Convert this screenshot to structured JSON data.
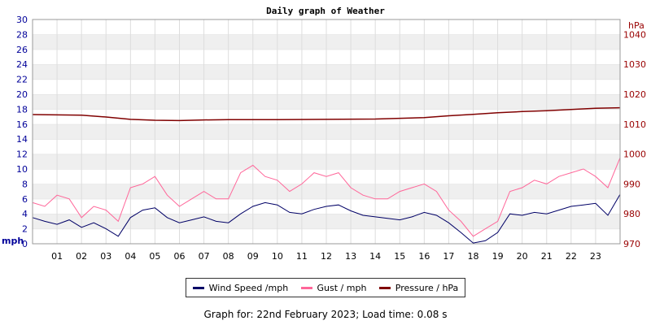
{
  "chart_data": {
    "type": "line",
    "title": "Daily graph of Weather",
    "left_axis": {
      "unit": "mph",
      "ylim": [
        0,
        30
      ],
      "ticks": [
        "0",
        "2",
        "4",
        "6",
        "8",
        "10",
        "12",
        "14",
        "16",
        "18",
        "20",
        "22",
        "24",
        "26",
        "28",
        "30"
      ],
      "color": "#000099"
    },
    "right_axis": {
      "unit": "hPa",
      "ylim": [
        970,
        1045
      ],
      "ticks": [
        "970",
        "980",
        "990",
        "1000",
        "1010",
        "1020",
        "1030",
        "1040"
      ],
      "color": "#990000"
    },
    "x_ticks": [
      "01",
      "02",
      "03",
      "04",
      "05",
      "06",
      "07",
      "08",
      "09",
      "10",
      "11",
      "12",
      "13",
      "14",
      "15",
      "16",
      "17",
      "18",
      "19",
      "20",
      "21",
      "22",
      "23"
    ],
    "x_range_hours": [
      0,
      24
    ],
    "grid": "horizontal bands",
    "series": [
      {
        "name": "Wind Speed /mph",
        "axis": "left",
        "color": "#000066",
        "x": [
          0,
          0.5,
          1,
          1.5,
          2,
          2.5,
          3,
          3.5,
          4,
          4.5,
          5,
          5.5,
          6,
          6.5,
          7,
          7.5,
          8,
          8.5,
          9,
          9.5,
          10,
          10.5,
          11,
          11.5,
          12,
          12.5,
          13,
          13.5,
          14,
          14.5,
          15,
          15.5,
          16,
          16.5,
          17,
          17.5,
          18,
          18.5,
          19,
          19.5,
          20,
          20.5,
          21,
          21.5,
          22,
          22.5,
          23,
          23.5,
          24
        ],
        "values": [
          3.5,
          3.0,
          2.6,
          3.2,
          2.2,
          2.8,
          2.0,
          1.0,
          3.5,
          4.5,
          4.8,
          3.5,
          2.8,
          3.2,
          3.6,
          3.0,
          2.8,
          4.0,
          5.0,
          5.5,
          5.2,
          4.2,
          4.0,
          4.6,
          5.0,
          5.2,
          4.4,
          3.8,
          3.6,
          3.4,
          3.2,
          3.6,
          4.2,
          3.8,
          2.8,
          1.5,
          0.1,
          0.4,
          1.5,
          4.0,
          3.8,
          4.2,
          4.0,
          4.5,
          5.0,
          5.2,
          5.4,
          3.8,
          6.6
        ]
      },
      {
        "name": "Gust / mph",
        "axis": "left",
        "color": "#ff6699",
        "x": [
          0,
          0.5,
          1,
          1.5,
          2,
          2.5,
          3,
          3.5,
          4,
          4.5,
          5,
          5.5,
          6,
          6.5,
          7,
          7.5,
          8,
          8.5,
          9,
          9.5,
          10,
          10.5,
          11,
          11.5,
          12,
          12.5,
          13,
          13.5,
          14,
          14.5,
          15,
          15.5,
          16,
          16.5,
          17,
          17.5,
          18,
          18.5,
          19,
          19.5,
          20,
          20.5,
          21,
          21.5,
          22,
          22.5,
          23,
          23.5,
          24
        ],
        "values": [
          5.5,
          5.0,
          6.5,
          6.0,
          3.5,
          5.0,
          4.5,
          3.0,
          7.5,
          8.0,
          9.0,
          6.5,
          5.0,
          6.0,
          7.0,
          6.0,
          6.0,
          9.5,
          10.5,
          9.0,
          8.5,
          7.0,
          8.0,
          9.5,
          9.0,
          9.5,
          7.5,
          6.5,
          6.0,
          6.0,
          7.0,
          7.5,
          8.0,
          7.0,
          4.5,
          3.0,
          1.0,
          2.0,
          3.0,
          7.0,
          7.5,
          8.5,
          8.0,
          9.0,
          9.5,
          10.0,
          9.0,
          7.5,
          11.5
        ]
      },
      {
        "name": "Pressure / hPa",
        "axis": "right",
        "color": "#800000",
        "x": [
          0,
          2,
          3,
          4,
          5,
          6,
          7,
          8,
          10,
          12,
          14,
          16,
          17,
          18,
          19,
          20,
          21,
          22,
          23,
          24
        ],
        "values": [
          1013.2,
          1013.0,
          1012.4,
          1011.6,
          1011.3,
          1011.2,
          1011.4,
          1011.5,
          1011.5,
          1011.6,
          1011.7,
          1012.2,
          1012.8,
          1013.3,
          1013.8,
          1014.2,
          1014.5,
          1014.9,
          1015.3,
          1015.5
        ]
      }
    ]
  },
  "footer": {
    "prefix": "Graph for:",
    "date": "22nd February 2023",
    "load_label": "Load time:",
    "load_time": "0.08 s"
  }
}
